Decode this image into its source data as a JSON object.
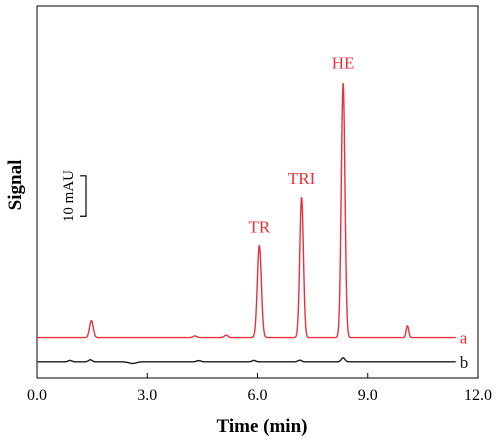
{
  "chart_data": {
    "type": "line",
    "xlabel": "Time (min)",
    "ylabel": "Signal",
    "xlim": [
      0,
      12
    ],
    "x_ticks": [
      {
        "value": 0,
        "label": "0.0"
      },
      {
        "value": 3,
        "label": "3.0"
      },
      {
        "value": 6,
        "label": "6.0"
      },
      {
        "value": 9,
        "label": "9.0"
      },
      {
        "value": 12,
        "label": "12.0"
      }
    ],
    "ylim": [
      -4,
      88
    ],
    "y_unit": "mAU",
    "scale_bar": {
      "label": "10 mAU",
      "value": 10,
      "from": 36,
      "to": 46
    },
    "grid": false,
    "series": [
      {
        "name": "a",
        "color": "#e8303c",
        "baseline": 6,
        "peaks": [
          {
            "time": 1.48,
            "height": 4.2,
            "width": 0.05
          },
          {
            "time": 4.3,
            "height": 0.4,
            "width": 0.05
          },
          {
            "time": 5.15,
            "height": 0.6,
            "width": 0.05
          },
          {
            "time": 6.05,
            "height": 22.8,
            "width": 0.055
          },
          {
            "time": 7.2,
            "height": 34.6,
            "width": 0.05
          },
          {
            "time": 8.33,
            "height": 62.8,
            "width": 0.05
          },
          {
            "time": 10.08,
            "height": 2.9,
            "width": 0.035
          }
        ]
      },
      {
        "name": "b",
        "color": "#1a1a1a",
        "baseline": 0,
        "peaks": [
          {
            "time": 0.9,
            "height": 0.35,
            "width": 0.05
          },
          {
            "time": 1.45,
            "height": 0.5,
            "width": 0.05
          },
          {
            "time": 2.6,
            "height": -0.4,
            "width": 0.1
          },
          {
            "time": 4.4,
            "height": 0.3,
            "width": 0.06
          },
          {
            "time": 5.9,
            "height": 0.35,
            "width": 0.05
          },
          {
            "time": 7.15,
            "height": 0.4,
            "width": 0.05
          },
          {
            "time": 8.33,
            "height": 1.0,
            "width": 0.05
          }
        ]
      }
    ],
    "annotations": [
      {
        "text": "TR",
        "time": 6.05,
        "value": 32
      },
      {
        "text": "TRI",
        "time": 7.2,
        "value": 44
      },
      {
        "text": "HE",
        "time": 8.33,
        "value": 72.5
      }
    ]
  }
}
